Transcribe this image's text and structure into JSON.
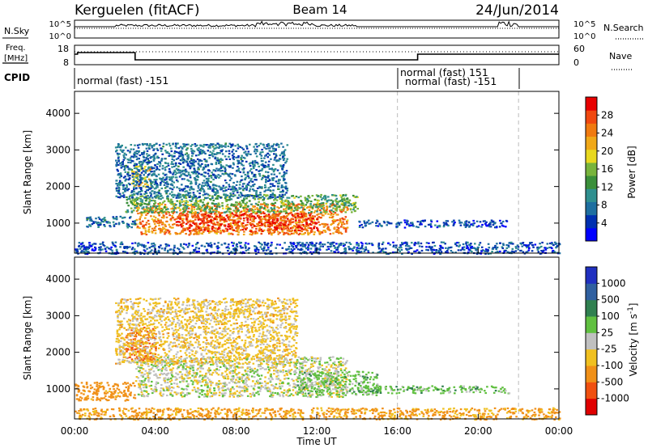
{
  "header": {
    "station": "Kerguelen (fitACF)",
    "beam": "Beam 14",
    "date": "24/Jun/2014"
  },
  "noise_panel": {
    "left_label": "N.Sky",
    "right_label": "N.Search",
    "left_ticks": [
      "10^5",
      "10^0"
    ],
    "right_ticks": [
      "10^5",
      "10^0"
    ]
  },
  "freq_panel": {
    "left_label_line1": "Freq.",
    "left_label_line2": "[MHz]",
    "left_ticks": [
      "18",
      "8"
    ],
    "right_label": "Nave",
    "right_ticks": [
      "60",
      "0"
    ]
  },
  "cpid": {
    "label": "CPID",
    "segments": [
      {
        "start_h": 0,
        "end_h": 16,
        "lines": [
          "normal (fast) -151"
        ]
      },
      {
        "start_h": 16,
        "end_h": 22,
        "lines": [
          "normal (fast) 151",
          "normal (fast) -151"
        ]
      }
    ]
  },
  "x_axis": {
    "label": "Time UT",
    "ticks": [
      "00:00",
      "04:00",
      "08:00",
      "12:00",
      "16:00",
      "20:00",
      "00:00"
    ]
  },
  "chart_data": [
    {
      "type": "heatmap",
      "name": "power",
      "ylabel": "Slant Range [km]",
      "x_unit": "hours UT",
      "xlim": [
        0,
        24
      ],
      "ylim": [
        180,
        4600
      ],
      "yticks": [
        "1000",
        "2000",
        "3000",
        "4000"
      ],
      "colorbar": {
        "label": "Power [dB]",
        "ticks": [
          "4",
          "8",
          "12",
          "16",
          "20",
          "24",
          "28"
        ],
        "colors": [
          "#0000ff",
          "#0030b0",
          "#1e6fa0",
          "#2f8f8f",
          "#3a8f3a",
          "#78b43c",
          "#e8d81f",
          "#f0a818",
          "#f07a10",
          "#f04810",
          "#e80000"
        ]
      },
      "regions": [
        {
          "t": [
            3.0,
            13.5
          ],
          "r": [
            700,
            1550
          ],
          "value_db": 24
        },
        {
          "t": [
            5.0,
            12.0
          ],
          "r": [
            800,
            1300
          ],
          "value_db": 28
        },
        {
          "t": [
            2.5,
            14.0
          ],
          "r": [
            1300,
            1800
          ],
          "value_db": 14
        },
        {
          "t": [
            0.5,
            3.0
          ],
          "r": [
            900,
            1200
          ],
          "value_db": 8
        },
        {
          "t": [
            2.8,
            3.8
          ],
          "r": [
            2000,
            2600
          ],
          "value_db": 20
        },
        {
          "t": [
            2.0,
            10.5
          ],
          "r": [
            1700,
            3200
          ],
          "value_db": 8
        },
        {
          "t": [
            14.0,
            21.5
          ],
          "r": [
            900,
            1100
          ],
          "value_db": 6
        },
        {
          "t": [
            0.0,
            24.0
          ],
          "r": [
            180,
            500
          ],
          "value_db": 6
        }
      ]
    },
    {
      "type": "heatmap",
      "name": "velocity",
      "ylabel": "Slant Range [km]",
      "x_unit": "hours UT",
      "xlim": [
        0,
        24
      ],
      "ylim": [
        180,
        4600
      ],
      "yticks": [
        "1000",
        "2000",
        "3000",
        "4000"
      ],
      "colorbar": {
        "label": "Velocity [m s^-1]",
        "ticks": [
          "1000",
          "500",
          "100",
          "25",
          "-25",
          "-100",
          "-500",
          "-1000"
        ],
        "colors": [
          "#2030c0",
          "#3060a0",
          "#308050",
          "#60c040",
          "#c0c0c0",
          "#f0c020",
          "#f09018",
          "#f05010",
          "#e00000"
        ]
      },
      "regions": [
        {
          "t": [
            3.0,
            13.5
          ],
          "r": [
            800,
            1900
          ],
          "value_ms": 0
        },
        {
          "t": [
            11.0,
            15.0
          ],
          "r": [
            850,
            1500
          ],
          "value_ms": 50
        },
        {
          "t": [
            2.5,
            4.0
          ],
          "r": [
            1800,
            2700
          ],
          "value_ms": -300
        },
        {
          "t": [
            0.0,
            3.0
          ],
          "r": [
            700,
            1200
          ],
          "value_ms": -150
        },
        {
          "t": [
            2.0,
            11.0
          ],
          "r": [
            1700,
            3500
          ],
          "value_ms": -50
        },
        {
          "t": [
            14.0,
            21.5
          ],
          "r": [
            900,
            1100
          ],
          "value_ms": 60
        },
        {
          "t": [
            0.0,
            24.0
          ],
          "r": [
            180,
            500
          ],
          "value_ms": -120
        }
      ]
    }
  ]
}
